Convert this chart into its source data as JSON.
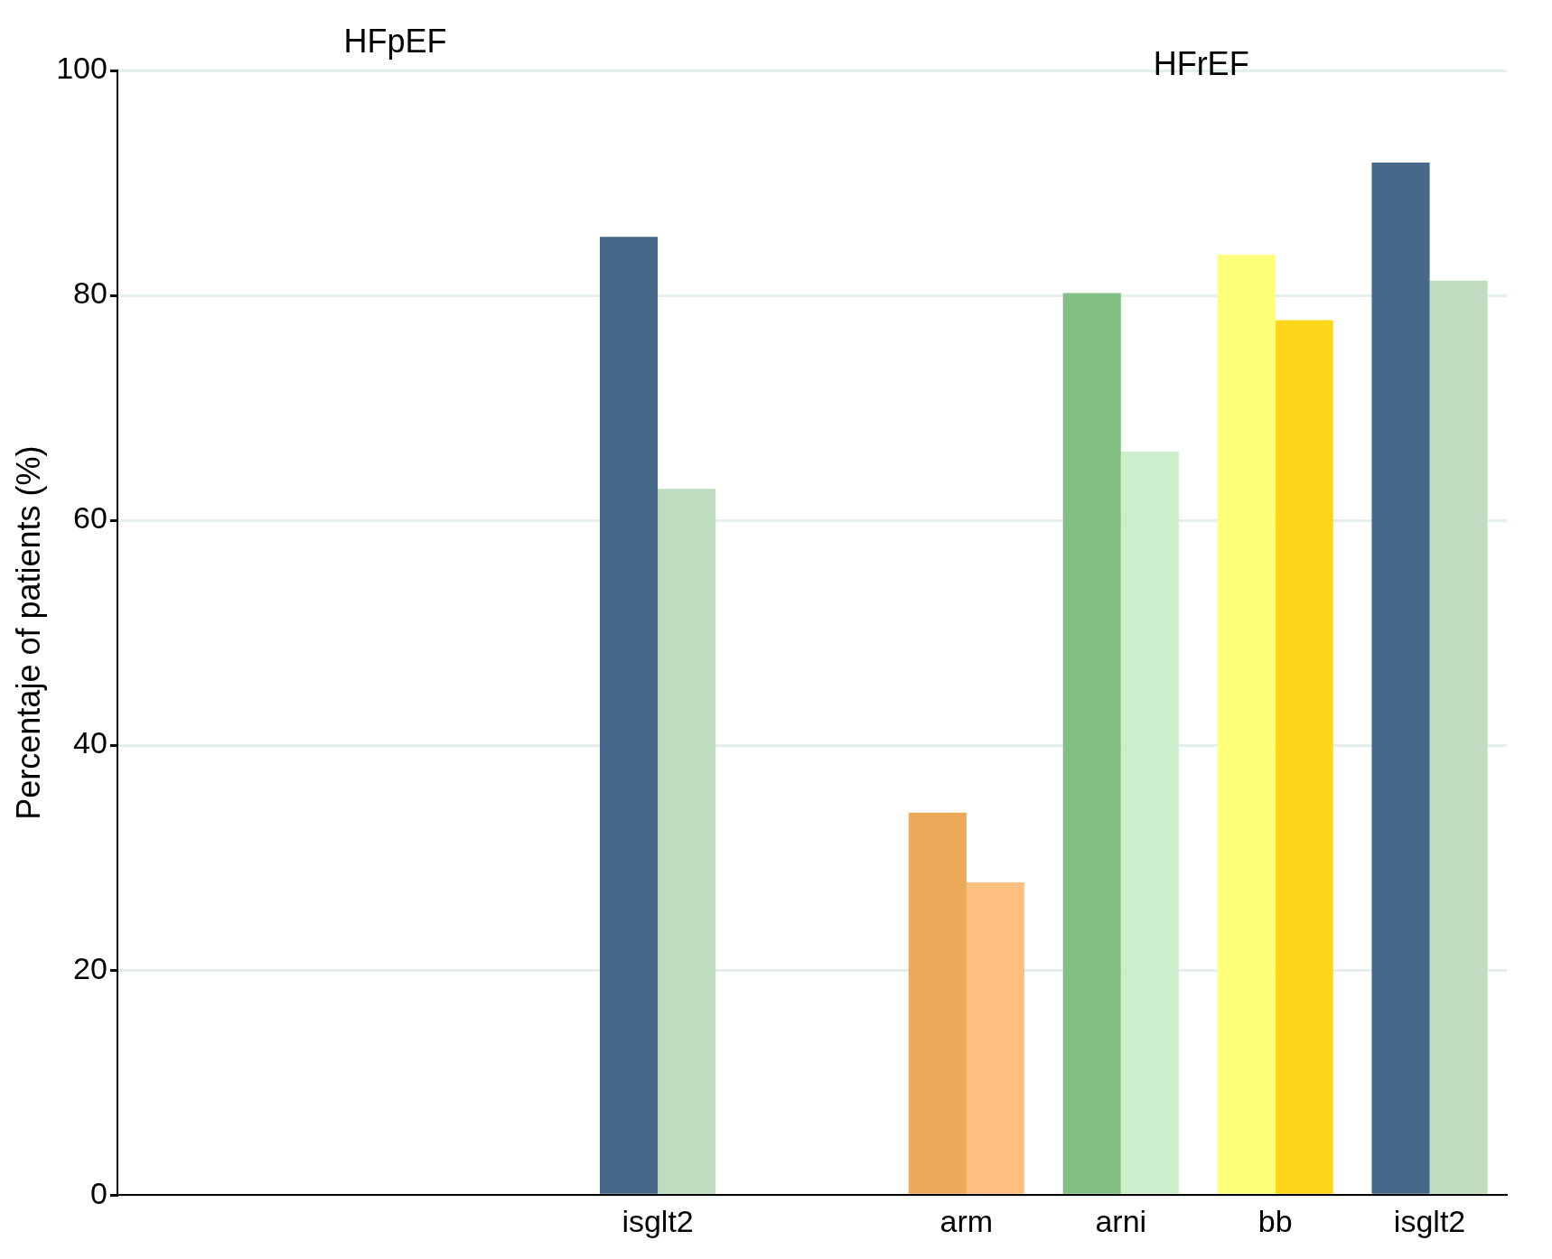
{
  "chart_data": {
    "type": "bar",
    "ylabel": "Percentaje of patients (%)",
    "categories": [
      null,
      null,
      null,
      "isglt2",
      null,
      "arm",
      "arni",
      "bb",
      "isglt2"
    ],
    "series": [
      {
        "colors": [
          "#46698a",
          "#46698a",
          "#46698a",
          "#46698a",
          "#46698a",
          "#eba95a",
          "#82bf82",
          "#ffff7a",
          "#46698a"
        ],
        "values": [
          null,
          null,
          null,
          85.2,
          null,
          34.0,
          80.2,
          83.6,
          91.8
        ]
      },
      {
        "colors": [
          "#c0dcc0",
          "#c0dcc0",
          "#c0dcc0",
          "#c0dcc0",
          "#c0dcc0",
          "#ffc080",
          "#cdeecd",
          "#ffd61a",
          "#c0dcc0"
        ],
        "values": [
          null,
          null,
          null,
          62.8,
          null,
          27.8,
          66.1,
          77.8,
          81.3
        ]
      }
    ],
    "ylim": [
      0,
      100
    ],
    "yticks": [
      0,
      20,
      40,
      60,
      80,
      100
    ],
    "grid": "y",
    "legend": false,
    "annotations": [
      "HFpEF",
      "HFrEF"
    ]
  }
}
